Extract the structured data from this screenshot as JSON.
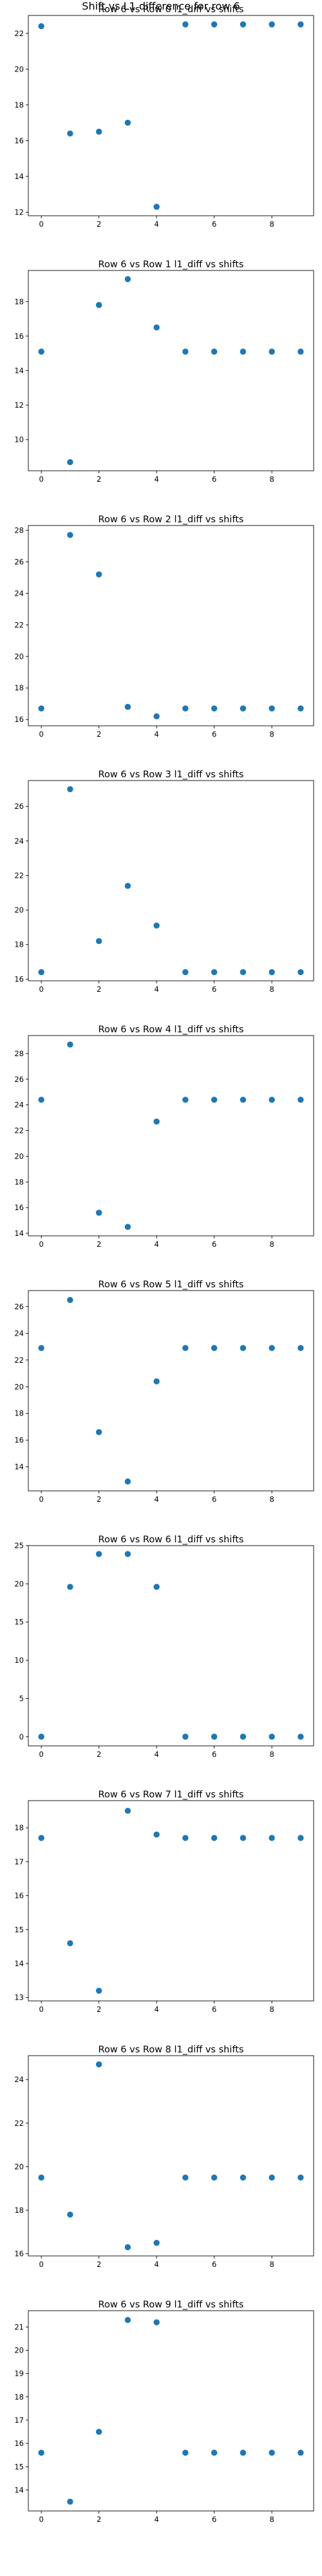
{
  "figure": {
    "suptitle": "Shift vs L1 difference for row 6"
  },
  "colors": {
    "marker": "#1f77b4",
    "frame": "#000000",
    "background": "#ffffff"
  },
  "chart_data": [
    {
      "type": "scatter",
      "title": "Row 6 vs Row 0 l1_diff vs shifts",
      "x": [
        0,
        1,
        2,
        3,
        4,
        5,
        6,
        7,
        8,
        9
      ],
      "y": [
        22.4,
        16.4,
        16.5,
        17.0,
        12.3,
        22.5,
        22.5,
        22.5,
        22.5,
        22.5
      ],
      "xlim": [
        -0.45,
        9.45
      ],
      "ylim": [
        11.8,
        23.0
      ],
      "xticks": [
        0,
        2,
        4,
        6,
        8
      ],
      "yticks": [
        12,
        14,
        16,
        18,
        20,
        22
      ],
      "grid": false
    },
    {
      "type": "scatter",
      "title": "Row 6 vs Row 1 l1_diff vs shifts",
      "x": [
        0,
        1,
        2,
        3,
        4,
        5,
        6,
        7,
        8,
        9
      ],
      "y": [
        15.1,
        8.7,
        17.8,
        19.3,
        16.5,
        15.1,
        15.1,
        15.1,
        15.1,
        15.1
      ],
      "xlim": [
        -0.45,
        9.45
      ],
      "ylim": [
        8.2,
        19.8
      ],
      "xticks": [
        0,
        2,
        4,
        6,
        8
      ],
      "yticks": [
        10,
        12,
        14,
        16,
        18
      ],
      "grid": false
    },
    {
      "type": "scatter",
      "title": "Row 6 vs Row 2 l1_diff vs shifts",
      "x": [
        0,
        1,
        2,
        3,
        4,
        5,
        6,
        7,
        8,
        9
      ],
      "y": [
        16.7,
        27.7,
        25.2,
        16.8,
        16.2,
        16.7,
        16.7,
        16.7,
        16.7,
        16.7
      ],
      "xlim": [
        -0.45,
        9.45
      ],
      "ylim": [
        15.6,
        28.3
      ],
      "xticks": [
        0,
        2,
        4,
        6,
        8
      ],
      "yticks": [
        16,
        18,
        20,
        22,
        24,
        26,
        28
      ],
      "grid": false
    },
    {
      "type": "scatter",
      "title": "Row 6 vs Row 3 l1_diff vs shifts",
      "x": [
        0,
        1,
        2,
        3,
        4,
        5,
        6,
        7,
        8,
        9
      ],
      "y": [
        16.4,
        27.0,
        18.2,
        21.4,
        19.1,
        16.4,
        16.4,
        16.4,
        16.4,
        16.4
      ],
      "xlim": [
        -0.45,
        9.45
      ],
      "ylim": [
        15.9,
        27.5
      ],
      "xticks": [
        0,
        2,
        4,
        6,
        8
      ],
      "yticks": [
        16,
        18,
        20,
        22,
        24,
        26
      ],
      "grid": false
    },
    {
      "type": "scatter",
      "title": "Row 6 vs Row 4 l1_diff vs shifts",
      "x": [
        0,
        1,
        2,
        3,
        4,
        5,
        6,
        7,
        8,
        9
      ],
      "y": [
        24.4,
        28.7,
        15.6,
        14.5,
        22.7,
        24.4,
        24.4,
        24.4,
        24.4,
        24.4
      ],
      "xlim": [
        -0.45,
        9.45
      ],
      "ylim": [
        13.8,
        29.4
      ],
      "xticks": [
        0,
        2,
        4,
        6,
        8
      ],
      "yticks": [
        14,
        16,
        18,
        20,
        22,
        24,
        26,
        28
      ],
      "grid": false
    },
    {
      "type": "scatter",
      "title": "Row 6 vs Row 5 l1_diff vs shifts",
      "x": [
        0,
        1,
        2,
        3,
        4,
        5,
        6,
        7,
        8,
        9
      ],
      "y": [
        22.9,
        26.5,
        16.6,
        12.9,
        20.4,
        22.9,
        22.9,
        22.9,
        22.9,
        22.9
      ],
      "xlim": [
        -0.45,
        9.45
      ],
      "ylim": [
        12.2,
        27.2
      ],
      "xticks": [
        0,
        2,
        4,
        6,
        8
      ],
      "yticks": [
        14,
        16,
        18,
        20,
        22,
        24,
        26
      ],
      "grid": false
    },
    {
      "type": "scatter",
      "title": "Row 6 vs Row 6 l1_diff vs shifts",
      "x": [
        0,
        1,
        2,
        3,
        4,
        5,
        6,
        7,
        8,
        9
      ],
      "y": [
        0,
        19.6,
        23.9,
        23.9,
        19.6,
        0,
        0,
        0,
        0,
        0
      ],
      "xlim": [
        -0.45,
        9.45
      ],
      "ylim": [
        -1.2,
        25.0
      ],
      "xticks": [
        0,
        2,
        4,
        6,
        8
      ],
      "yticks": [
        0,
        5,
        10,
        15,
        20,
        25
      ],
      "grid": false
    },
    {
      "type": "scatter",
      "title": "Row 6 vs Row 7 l1_diff vs shifts",
      "x": [
        0,
        1,
        2,
        3,
        4,
        5,
        6,
        7,
        8,
        9
      ],
      "y": [
        17.7,
        14.6,
        13.2,
        18.5,
        17.8,
        17.7,
        17.7,
        17.7,
        17.7,
        17.7
      ],
      "xlim": [
        -0.45,
        9.45
      ],
      "ylim": [
        12.9,
        18.8
      ],
      "xticks": [
        0,
        2,
        4,
        6,
        8
      ],
      "yticks": [
        13,
        14,
        15,
        16,
        17,
        18
      ],
      "grid": false
    },
    {
      "type": "scatter",
      "title": "Row 6 vs Row 8 l1_diff vs shifts",
      "x": [
        0,
        1,
        2,
        3,
        4,
        5,
        6,
        7,
        8,
        9
      ],
      "y": [
        19.5,
        17.8,
        24.7,
        16.3,
        16.5,
        19.5,
        19.5,
        19.5,
        19.5,
        19.5
      ],
      "xlim": [
        -0.45,
        9.45
      ],
      "ylim": [
        15.9,
        25.1
      ],
      "xticks": [
        0,
        2,
        4,
        6,
        8
      ],
      "yticks": [
        16,
        18,
        20,
        22,
        24
      ],
      "grid": false
    },
    {
      "type": "scatter",
      "title": "Row 6 vs Row 9 l1_diff vs shifts",
      "x": [
        0,
        1,
        2,
        3,
        4,
        5,
        6,
        7,
        8,
        9
      ],
      "y": [
        15.6,
        13.5,
        16.5,
        21.3,
        21.2,
        15.6,
        15.6,
        15.6,
        15.6,
        15.6
      ],
      "xlim": [
        -0.45,
        9.45
      ],
      "ylim": [
        13.1,
        21.7
      ],
      "xticks": [
        0,
        2,
        4,
        6,
        8
      ],
      "yticks": [
        14,
        15,
        16,
        17,
        18,
        19,
        20,
        21
      ],
      "grid": false
    }
  ]
}
